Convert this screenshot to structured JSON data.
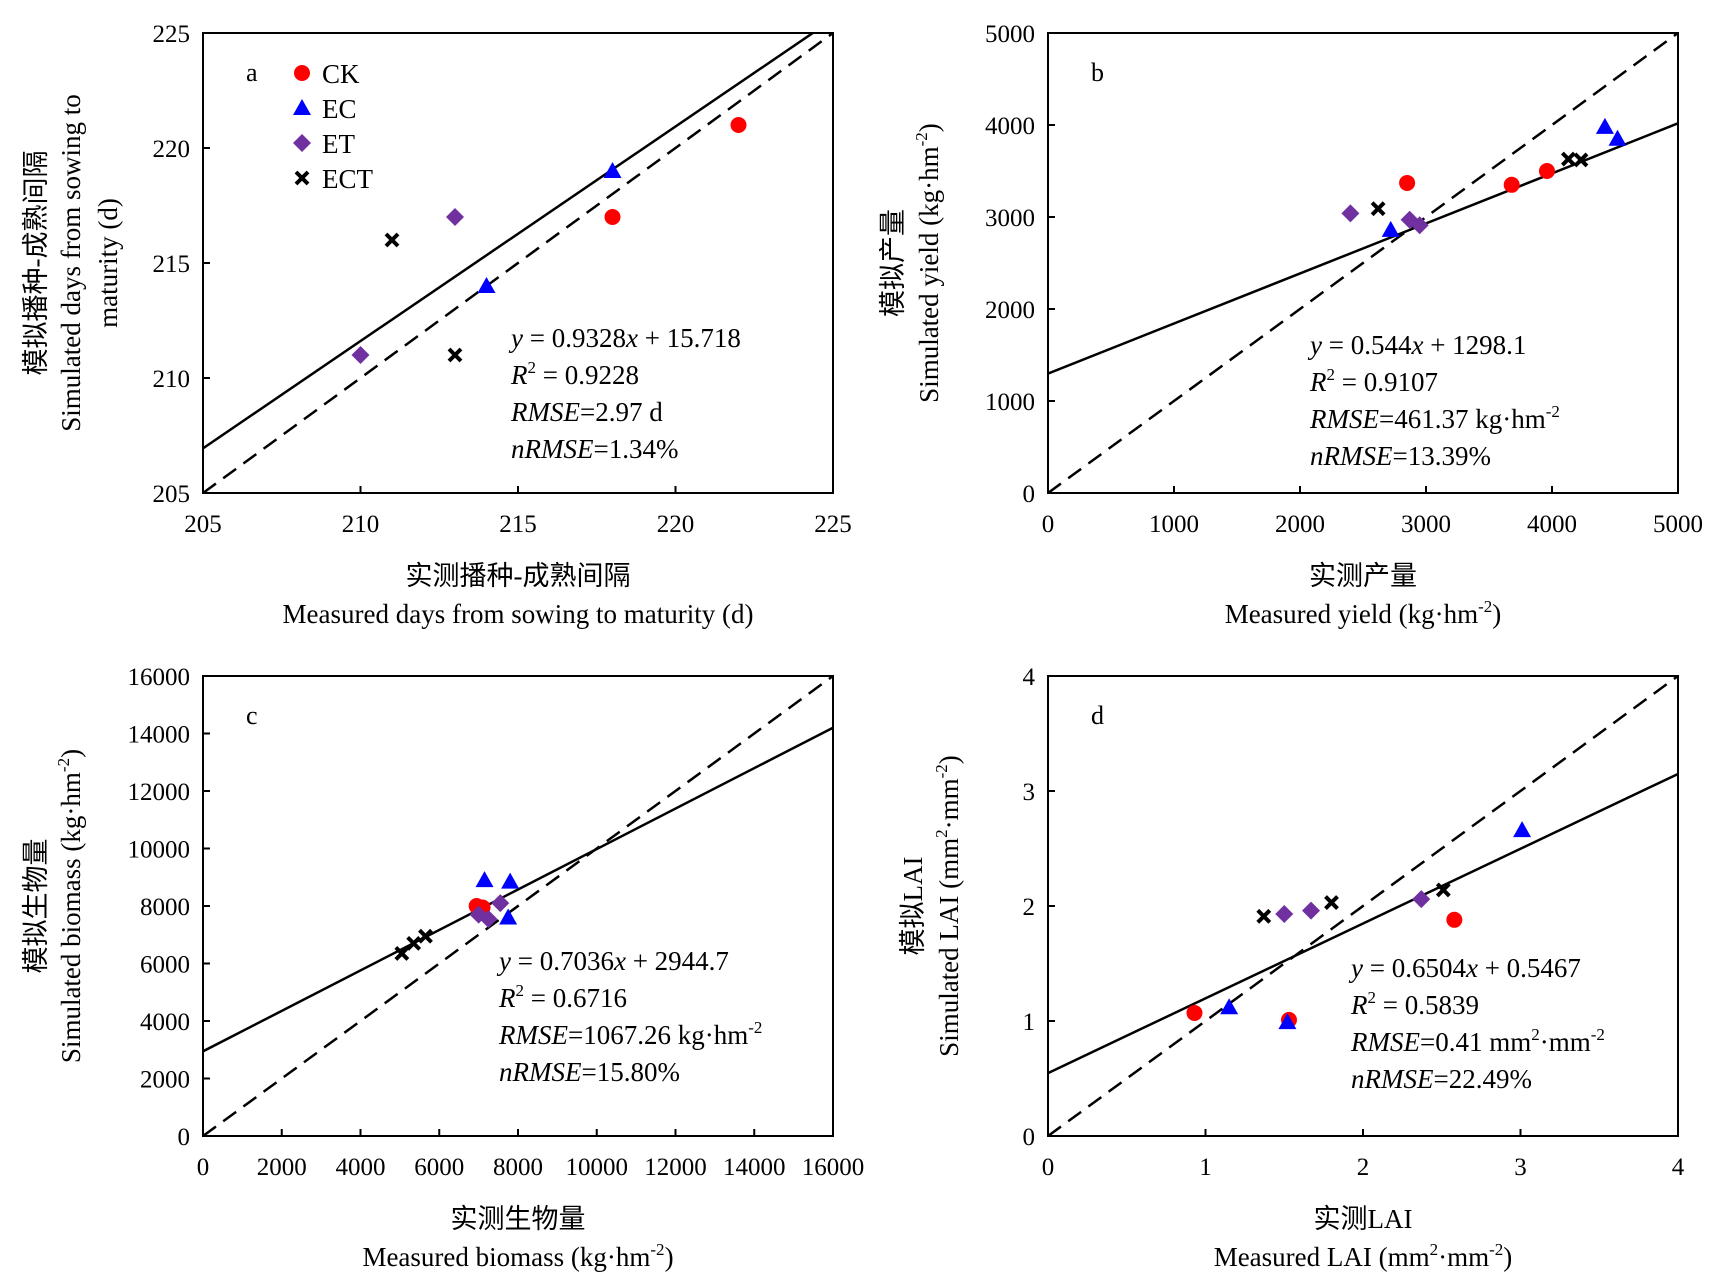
{
  "colors": {
    "CK": "#ff0000",
    "EC": "#0000ff",
    "ET": "#7030a0",
    "ECT": "#000000",
    "line": "#000000"
  },
  "legend": [
    {
      "name": "CK",
      "marker": "circle"
    },
    {
      "name": "EC",
      "marker": "triangle"
    },
    {
      "name": "ET",
      "marker": "diamond"
    },
    {
      "name": "ECT",
      "marker": "cross"
    }
  ],
  "chart_data": [
    {
      "type": "scatter",
      "panel_label": "a",
      "xlabel_cn": "实测播种-成熟间隔",
      "xlabel_en": "Measured days from sowing to maturity (d)",
      "ylabel_cn": "模拟播种-成熟间隔",
      "ylabel_en_1": "Simulated days from sowing to",
      "ylabel_en_2": "maturity (d)",
      "xlim": [
        205,
        225
      ],
      "ylim": [
        205,
        225
      ],
      "xticks": [
        "205",
        "210",
        "215",
        "220",
        "225"
      ],
      "yticks": [
        "205",
        "210",
        "215",
        "220",
        "225"
      ],
      "fit": {
        "slope": 0.9328,
        "intercept": 15.718
      },
      "equation": {
        "prefix": "y",
        "text": " = 0.9328x + 15.718"
      },
      "r2": " = 0.9228",
      "rmse": "=2.97 d",
      "nrmse": "=1.34%",
      "series": [
        {
          "name": "CK",
          "points": [
            [
              218,
              217
            ],
            [
              222,
              221
            ]
          ]
        },
        {
          "name": "EC",
          "points": [
            [
              214,
              214
            ],
            [
              218,
              219
            ]
          ]
        },
        {
          "name": "ET",
          "points": [
            [
              210,
              211
            ],
            [
              213,
              217
            ]
          ]
        },
        {
          "name": "ECT",
          "points": [
            [
              211,
              216
            ],
            [
              213,
              211
            ]
          ]
        }
      ]
    },
    {
      "type": "scatter",
      "panel_label": "b",
      "xlabel_cn": "实测产量",
      "xlabel_en": "Measured yield (kg·hm",
      "ylabel_cn": "模拟产量",
      "ylabel_en": "Simulated yield (kg·hm",
      "unit_sup": "-2",
      "xlim": [
        0,
        5000
      ],
      "ylim": [
        0,
        5000
      ],
      "xticks": [
        "0",
        "1000",
        "2000",
        "3000",
        "4000",
        "5000"
      ],
      "yticks": [
        "0",
        "1000",
        "2000",
        "3000",
        "4000",
        "5000"
      ],
      "fit": {
        "slope": 0.544,
        "intercept": 1298.1
      },
      "equation": {
        "prefix": "y",
        "text": " = 0.544x + 1298.1"
      },
      "r2": " = 0.9107",
      "rmse": "=461.37 kg·hm",
      "rmse_sup": "-2",
      "nrmse": "=13.39%",
      "series": [
        {
          "name": "CK",
          "points": [
            [
              2850,
              3370
            ],
            [
              3680,
              3350
            ],
            [
              3960,
              3500
            ]
          ]
        },
        {
          "name": "EC",
          "points": [
            [
              2720,
              2860
            ],
            [
              4420,
              3980
            ],
            [
              4520,
              3850
            ]
          ]
        },
        {
          "name": "ET",
          "points": [
            [
              2400,
              3040
            ],
            [
              2870,
              2970
            ],
            [
              2950,
              2910
            ]
          ]
        },
        {
          "name": "ECT",
          "points": [
            [
              2620,
              3090
            ],
            [
              4130,
              3630
            ],
            [
              4230,
              3620
            ]
          ]
        }
      ]
    },
    {
      "type": "scatter",
      "panel_label": "c",
      "xlabel_cn": "实测生物量",
      "xlabel_en": "Measured biomass (kg·hm",
      "ylabel_cn": "模拟生物量",
      "ylabel_en": "Simulated biomass (kg·hm",
      "unit_sup": "-2",
      "xlim": [
        0,
        16000
      ],
      "ylim": [
        0,
        16000
      ],
      "xticks": [
        "0",
        "2000",
        "4000",
        "6000",
        "8000",
        "10000",
        "12000",
        "14000",
        "16000"
      ],
      "yticks": [
        "0",
        "2000",
        "4000",
        "6000",
        "8000",
        "10000",
        "12000",
        "14000",
        "16000"
      ],
      "fit": {
        "slope": 0.7036,
        "intercept": 2944.7
      },
      "equation": {
        "prefix": "y",
        "text": " = 0.7036x + 2944.7"
      },
      "r2": " = 0.6716",
      "rmse": "=1067.26 kg·hm",
      "rmse_sup": "-2",
      "nrmse": "=15.80%",
      "series": [
        {
          "name": "CK",
          "points": [
            [
              6950,
              8000
            ],
            [
              7100,
              7950
            ]
          ]
        },
        {
          "name": "EC",
          "points": [
            [
              7150,
              8900
            ],
            [
              7800,
              8850
            ],
            [
              7750,
              7600
            ]
          ]
        },
        {
          "name": "ET",
          "points": [
            [
              7000,
              7700
            ],
            [
              7250,
              7550
            ],
            [
              7550,
              8100
            ]
          ]
        },
        {
          "name": "ECT",
          "points": [
            [
              5050,
              6350
            ],
            [
              5350,
              6700
            ],
            [
              5650,
              6950
            ]
          ]
        }
      ]
    },
    {
      "type": "scatter",
      "panel_label": "d",
      "xlabel_cn": "实测LAI",
      "xlabel_en": "Measured LAI (mm",
      "ylabel_cn": "模拟LAI",
      "ylabel_en": "Simulated LAI (mm",
      "unit_mid": "·mm",
      "unit_sup_1": "2",
      "unit_sup_2": "-2",
      "xlim": [
        0,
        4
      ],
      "ylim": [
        0,
        4
      ],
      "xticks": [
        "0",
        "1",
        "2",
        "3",
        "4"
      ],
      "yticks": [
        "0",
        "1",
        "2",
        "3",
        "4"
      ],
      "fit": {
        "slope": 0.6504,
        "intercept": 0.5467
      },
      "equation": {
        "prefix": "y",
        "text": " = 0.6504x + 0.5467"
      },
      "r2": " = 0.5839",
      "rmse": "=0.41 mm",
      "rmse_mid": "·mm",
      "rmse_sup_1": "2",
      "rmse_sup_2": "-2",
      "nrmse": "=22.49%",
      "series": [
        {
          "name": "CK",
          "points": [
            [
              0.93,
              1.07
            ],
            [
              1.53,
              1.01
            ],
            [
              2.58,
              1.88
            ]
          ]
        },
        {
          "name": "EC",
          "points": [
            [
              1.15,
              1.12
            ],
            [
              1.52,
              0.99
            ],
            [
              3.01,
              2.66
            ]
          ]
        },
        {
          "name": "ET",
          "points": [
            [
              1.5,
              1.93
            ],
            [
              1.67,
              1.96
            ],
            [
              2.37,
              2.06
            ]
          ]
        },
        {
          "name": "ECT",
          "points": [
            [
              1.37,
              1.91
            ],
            [
              1.8,
              2.03
            ],
            [
              2.51,
              2.14
            ]
          ]
        }
      ]
    }
  ]
}
